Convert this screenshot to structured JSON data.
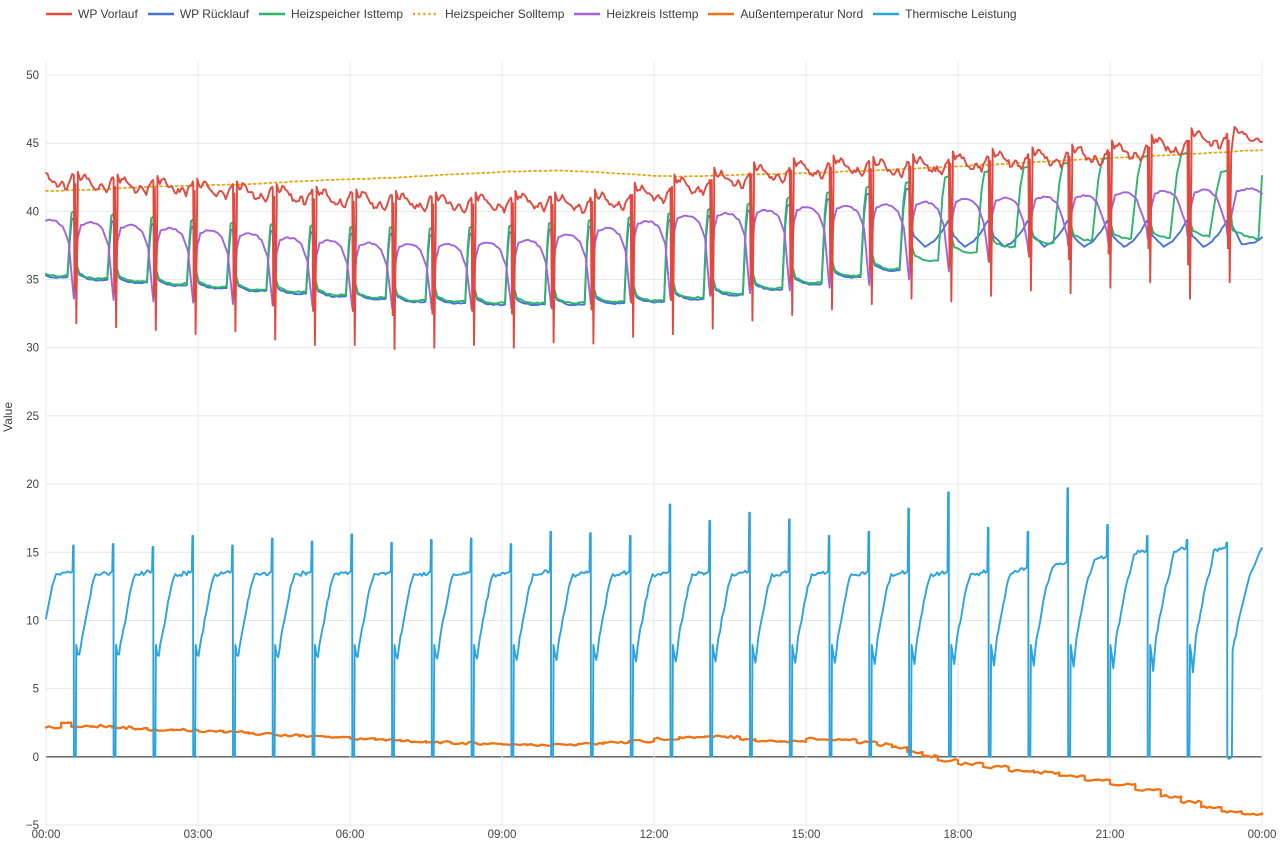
{
  "chart_data": {
    "type": "line",
    "title": "",
    "xlabel": "",
    "ylabel": "Value",
    "xlim_hours": [
      0,
      24
    ],
    "ylim": [
      -5,
      50
    ],
    "grid": true,
    "legend_position": "top",
    "style": {
      "text_color": "#444444",
      "grid_color": "#e7e7e7",
      "zero_line_color": "#565656",
      "background": "#ffffff"
    },
    "x_ticks": [
      {
        "t": 0,
        "label": "00:00"
      },
      {
        "t": 3,
        "label": "03:00"
      },
      {
        "t": 6,
        "label": "06:00"
      },
      {
        "t": 9,
        "label": "09:00"
      },
      {
        "t": 12,
        "label": "12:00"
      },
      {
        "t": 15,
        "label": "15:00"
      },
      {
        "t": 18,
        "label": "18:00"
      },
      {
        "t": 21,
        "label": "21:00"
      },
      {
        "t": 24,
        "label": "00:00"
      }
    ],
    "y_ticks": [
      {
        "v": 50,
        "label": "50"
      },
      {
        "v": 45,
        "label": "45"
      },
      {
        "v": 40,
        "label": "40"
      },
      {
        "v": 35,
        "label": "35"
      },
      {
        "v": 30,
        "label": "30"
      },
      {
        "v": 25,
        "label": "25"
      },
      {
        "v": 20,
        "label": "20"
      },
      {
        "v": 15,
        "label": "15"
      },
      {
        "v": 10,
        "label": "10"
      },
      {
        "v": 5,
        "label": "5"
      },
      {
        "v": 0,
        "label": "0"
      },
      {
        "v": -5,
        "label": "−5"
      }
    ],
    "cycles": {
      "count": 30,
      "first_event_h": 0.55,
      "period_h": 0.785
    },
    "series": [
      {
        "name": "WP Vorlauf",
        "color": "#e2493f",
        "width": 1.9,
        "kind": "run_crash",
        "noise": 0.22,
        "densify_step": 0.035,
        "peaks": [
          43.0,
          42.8,
          42.6,
          42.5,
          42.3,
          42.1,
          41.9,
          41.7,
          41.5,
          41.4,
          41.3,
          41.3,
          41.4,
          41.3,
          41.5,
          42.0,
          42.6,
          43.1,
          43.5,
          43.8,
          44.0,
          43.9,
          44.1,
          44.3,
          44.5,
          44.6,
          44.8,
          45.1,
          45.5,
          46.0
        ],
        "dips": [
          31.8,
          31.5,
          31.3,
          31.0,
          31.2,
          30.6,
          30.2,
          30.2,
          29.9,
          30.0,
          30.2,
          30.0,
          30.4,
          30.3,
          30.8,
          31.0,
          31.4,
          32.0,
          32.4,
          32.8,
          33.2,
          33.6,
          33.4,
          33.8,
          34.2,
          34.0,
          34.4,
          34.8,
          33.6,
          34.8
        ],
        "run_profile": [
          [
            0.1,
            0.1
          ],
          [
            0.16,
            -0.5
          ],
          [
            0.28,
            -0.1
          ],
          [
            0.42,
            -0.7
          ],
          [
            0.58,
            -1.2
          ],
          [
            0.7,
            -0.8
          ],
          [
            0.82,
            -1.4
          ],
          [
            0.92,
            -0.6
          ],
          [
            0.99,
            -0.3
          ]
        ],
        "crash_profile": [
          [
            0.012,
            "dip",
            2.5
          ],
          [
            0.03,
            "peakNext",
            -0.8
          ],
          [
            0.048,
            "dip",
            0
          ],
          [
            0.078,
            "peakNext",
            -1.8
          ]
        ],
        "tail": [
          [
            23.46,
            46.2
          ],
          [
            23.72,
            45.4
          ],
          [
            24,
            45.1
          ]
        ]
      },
      {
        "name": "WP Rücklauf",
        "color": "#4673d9",
        "width": 1.9,
        "kind": "return_line",
        "noise": 0.05,
        "densify_step": 0.05,
        "follow_until": 21,
        "offset": -0.12,
        "spike_offset": -0.5,
        "wave_min": 37.4,
        "wave_max": 39.3,
        "wave_profile": [
          [
            0.04,
            "max",
            -0.2
          ],
          [
            0.12,
            "max",
            -1.1
          ],
          [
            0.4,
            "min",
            0
          ],
          [
            0.62,
            "min",
            0.4
          ],
          [
            0.82,
            "min",
            1.1
          ],
          [
            0.98,
            "max",
            0
          ]
        ],
        "tail": [
          [
            23.42,
            38.9
          ],
          [
            23.6,
            37.6
          ],
          [
            23.85,
            37.7
          ],
          [
            24,
            38.1
          ]
        ]
      },
      {
        "name": "Heizspeicher Isttemp",
        "color": "#2db46d",
        "width": 1.9,
        "kind": "store",
        "noise": 0.06,
        "densify_step": 0.05,
        "peaks": [
          40.0,
          39.8,
          39.6,
          39.4,
          39.2,
          39.1,
          39.0,
          38.9,
          38.9,
          38.8,
          38.9,
          39.0,
          39.2,
          39.4,
          39.6,
          39.9,
          40.2,
          40.6,
          41.0,
          41.4,
          41.8,
          42.2,
          42.6,
          43.0,
          43.3,
          43.6,
          43.9,
          44.1,
          44.3,
          43.0
        ],
        "lows": [
          35.3,
          35.1,
          34.9,
          34.7,
          34.5,
          34.3,
          34.1,
          33.9,
          33.7,
          33.5,
          33.4,
          33.3,
          33.3,
          33.3,
          33.4,
          33.5,
          33.7,
          34.0,
          34.4,
          34.8,
          35.3,
          35.8,
          36.4,
          37.0,
          37.4,
          37.7,
          37.9,
          38.0,
          38.1,
          38.2
        ],
        "rise_start": [
          0.84,
          0.84,
          0.84,
          0.84,
          0.84,
          0.84,
          0.84,
          0.84,
          0.84,
          0.84,
          0.84,
          0.84,
          0.84,
          0.84,
          0.84,
          0.84,
          0.83,
          0.82,
          0.81,
          0.8,
          0.78,
          0.76,
          0.73,
          0.7,
          0.66,
          0.63,
          0.6,
          0.58,
          0.56,
          0.55
        ],
        "decay_profile": [
          [
            0.05,
            1.3
          ],
          [
            0.14,
            0.35
          ],
          [
            0.35,
            0.05
          ],
          [
            0.55,
            -0.05
          ]
        ],
        "tail": [
          [
            23.42,
            38.6
          ],
          [
            23.75,
            38.1
          ],
          [
            23.93,
            38.0
          ],
          [
            24,
            42.6
          ]
        ]
      },
      {
        "name": "Heizspeicher Solltemp",
        "color": "#e4a713",
        "width": 1.8,
        "kind": "points",
        "dash": "2 3.2",
        "noise": 0.02,
        "densify_step": 0.12,
        "points": [
          [
            0,
            41.5
          ],
          [
            1,
            41.6
          ],
          [
            2,
            41.8
          ],
          [
            3,
            41.9
          ],
          [
            4,
            42.0
          ],
          [
            5,
            42.2
          ],
          [
            6,
            42.35
          ],
          [
            7,
            42.5
          ],
          [
            8,
            42.7
          ],
          [
            9,
            42.9
          ],
          [
            10,
            43.0
          ],
          [
            11,
            42.85
          ],
          [
            12,
            42.6
          ],
          [
            12.5,
            42.55
          ],
          [
            13,
            42.6
          ],
          [
            14,
            42.7
          ],
          [
            15,
            42.8
          ],
          [
            16,
            42.95
          ],
          [
            17,
            43.1
          ],
          [
            18,
            43.3
          ],
          [
            19,
            43.5
          ],
          [
            20,
            43.7
          ],
          [
            21,
            43.9
          ],
          [
            22,
            44.1
          ],
          [
            23,
            44.3
          ],
          [
            24,
            44.5
          ]
        ]
      },
      {
        "name": "Heizkreis Isttemp",
        "color": "#a263dd",
        "width": 1.9,
        "kind": "dome",
        "noise": 0.07,
        "densify_step": 0.05,
        "highs": [
          39.4,
          39.2,
          39.0,
          38.8,
          38.6,
          38.4,
          38.1,
          37.9,
          37.7,
          37.6,
          37.6,
          37.7,
          37.9,
          38.3,
          38.8,
          39.3,
          39.7,
          39.9,
          40.1,
          40.3,
          40.4,
          40.5,
          40.7,
          40.9,
          41.0,
          41.1,
          41.2,
          41.4,
          41.5,
          41.6
        ],
        "lows": [
          33.6,
          33.5,
          33.4,
          33.3,
          33.2,
          33.1,
          33.0,
          32.9,
          32.9,
          32.8,
          32.8,
          32.9,
          33.0,
          33.2,
          33.4,
          33.6,
          33.8,
          34.0,
          34.2,
          34.4,
          34.6,
          35.0,
          35.6,
          36.3,
          37.0,
          37.5,
          37.8,
          38.0,
          38.2,
          38.3
        ],
        "dome_profile": [
          [
            0.045,
            "low",
            1.6
          ],
          [
            0.1,
            "high",
            -1.1
          ],
          [
            0.18,
            "high",
            -0.2
          ],
          [
            0.38,
            "high",
            0
          ],
          [
            0.56,
            "high",
            -0.1
          ],
          [
            0.72,
            "high",
            -0.5
          ],
          [
            0.87,
            "high",
            -1.7
          ],
          [
            0.975,
            "low",
            0.7
          ],
          [
            1.0,
            "low",
            0
          ]
        ],
        "tail": [
          [
            23.5,
            41.5
          ],
          [
            23.8,
            41.7
          ],
          [
            24,
            41.3
          ]
        ]
      },
      {
        "name": "Außentemperatur Nord",
        "color": "#ef7215",
        "width": 2.3,
        "kind": "steps",
        "noise": 0.1,
        "densify_step": 0.06,
        "points": [
          [
            0,
            2.15
          ],
          [
            0.3,
            2.5
          ],
          [
            0.5,
            2.2
          ],
          [
            0.9,
            2.25
          ],
          [
            1.3,
            2.15
          ],
          [
            1.7,
            2.1
          ],
          [
            2,
            2.0
          ],
          [
            2.5,
            1.95
          ],
          [
            3,
            1.9
          ],
          [
            3.5,
            1.8
          ],
          [
            4,
            1.7
          ],
          [
            4.5,
            1.6
          ],
          [
            5,
            1.5
          ],
          [
            5.5,
            1.45
          ],
          [
            6,
            1.35
          ],
          [
            6.5,
            1.25
          ],
          [
            7,
            1.15
          ],
          [
            7.5,
            1.05
          ],
          [
            8,
            1.0
          ],
          [
            8.5,
            0.95
          ],
          [
            9,
            0.9
          ],
          [
            9.5,
            0.85
          ],
          [
            10,
            0.9
          ],
          [
            10.5,
            0.95
          ],
          [
            11,
            1.05
          ],
          [
            11.5,
            1.15
          ],
          [
            12,
            1.3
          ],
          [
            12.5,
            1.45
          ],
          [
            13,
            1.5
          ],
          [
            13.4,
            1.45
          ],
          [
            13.7,
            1.3
          ],
          [
            14,
            1.15
          ],
          [
            14.5,
            1.1
          ],
          [
            15,
            1.3
          ],
          [
            15.5,
            1.25
          ],
          [
            16,
            1.05
          ],
          [
            16.4,
            0.9
          ],
          [
            16.7,
            0.7
          ],
          [
            17,
            0.35
          ],
          [
            17.3,
            0.05
          ],
          [
            17.6,
            -0.25
          ],
          [
            18,
            -0.5
          ],
          [
            18.5,
            -0.75
          ],
          [
            19,
            -1.0
          ],
          [
            19.5,
            -1.15
          ],
          [
            20,
            -1.4
          ],
          [
            20.5,
            -1.7
          ],
          [
            21,
            -2.0
          ],
          [
            21.5,
            -2.4
          ],
          [
            22,
            -2.9
          ],
          [
            22.4,
            -3.3
          ],
          [
            22.8,
            -3.7
          ],
          [
            23.2,
            -4.0
          ],
          [
            23.6,
            -4.15
          ],
          [
            24,
            -4.2
          ]
        ]
      },
      {
        "name": "Thermische Leistung",
        "color": "#2aa3df",
        "width": 1.9,
        "kind": "power",
        "noise": 0.18,
        "densify_step": 0.035,
        "p1": 13.4,
        "spikes": [
          15.5,
          15.6,
          15.4,
          16.2,
          15.5,
          16.0,
          15.8,
          16.3,
          15.7,
          15.9,
          16.0,
          15.6,
          16.5,
          16.4,
          16.2,
          18.5,
          17.3,
          17.9,
          17.4,
          16.2,
          16.5,
          18.2,
          19.4,
          16.8,
          16.5,
          19.7,
          17.0,
          16.2,
          15.9,
          15.7
        ],
        "p2": [
          13.5,
          13.5,
          13.5,
          13.5,
          13.5,
          13.5,
          13.5,
          13.5,
          13.5,
          13.5,
          13.5,
          13.5,
          13.5,
          13.5,
          13.5,
          13.5,
          13.5,
          13.5,
          13.5,
          13.5,
          13.5,
          13.5,
          13.5,
          13.5,
          13.8,
          14.2,
          14.6,
          15.0,
          15.2,
          15.3
        ],
        "vmin": [
          7.6,
          7.5,
          7.5,
          7.4,
          7.4,
          7.4,
          7.3,
          7.3,
          7.3,
          7.2,
          7.2,
          7.2,
          7.1,
          7.1,
          7.1,
          7.0,
          7.0,
          7.0,
          6.9,
          6.9,
          6.9,
          6.8,
          6.8,
          6.8,
          6.7,
          6.7,
          6.6,
          6.5,
          6.3,
          6.2
        ],
        "cycle_profile": [
          [
            0.012,
            "abs",
            0
          ],
          [
            0.048,
            "abs",
            0
          ],
          [
            0.062,
            "abs",
            8.2
          ],
          [
            0.095,
            "abs",
            7.5
          ],
          [
            0.135,
            "vmin",
            0
          ],
          [
            0.21,
            "abs",
            8.8
          ],
          [
            0.33,
            "abs",
            10.6
          ],
          [
            0.45,
            "abs",
            12.5
          ],
          [
            0.55,
            "p1",
            0
          ],
          [
            0.66,
            "p2",
            -0.15
          ],
          [
            0.8,
            "p2",
            0
          ],
          [
            0.92,
            "p2",
            0
          ],
          [
            0.965,
            "p2",
            0.1
          ],
          [
            0.98,
            "spike",
            0
          ],
          [
            0.997,
            "spike",
            0
          ],
          [
            1.0,
            "abs",
            0
          ]
        ],
        "tail": [
          [
            23.405,
            0
          ],
          [
            23.42,
            7.8
          ],
          [
            23.55,
            10.2
          ],
          [
            23.75,
            13.2
          ],
          [
            23.93,
            14.8
          ],
          [
            24,
            15.3
          ]
        ]
      }
    ]
  }
}
